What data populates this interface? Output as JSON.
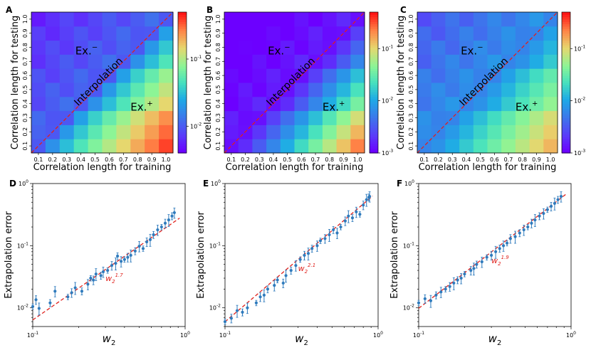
{
  "chart_data": [
    {
      "panel": "A",
      "type": "heatmap",
      "xlabel": "Correlation length for training",
      "ylabel": "Correlation length for testing",
      "categories": [
        "0.1",
        "0.2",
        "0.3",
        "0.4",
        "0.5",
        "0.6",
        "0.7",
        "0.8",
        "0.9",
        "1.0"
      ],
      "colorbar": {
        "scale": "log",
        "range": [
          0.004,
          0.5
        ],
        "ticks": [
          {
            "label": "10",
            "sup": "-2",
            "value": 0.01
          },
          {
            "label": "10",
            "sup": "-1",
            "value": 0.1
          }
        ]
      },
      "annotations": {
        "ex_minus": "Ex.",
        "ex_minus_sup": "−",
        "ex_plus": "Ex.",
        "ex_plus_sup": "+",
        "diagonal": "Interpolation"
      }
    },
    {
      "panel": "B",
      "type": "heatmap",
      "xlabel": "Correlation length for training",
      "ylabel": "Correlation length for testing",
      "categories": [
        "0.1",
        "0.2",
        "0.3",
        "0.4",
        "0.5",
        "0.6",
        "0.7",
        "0.8",
        "0.9",
        "1.0"
      ],
      "colorbar": {
        "scale": "log",
        "range": [
          0.001,
          0.5
        ],
        "ticks": [
          {
            "label": "10",
            "sup": "-3",
            "value": 0.001
          },
          {
            "label": "10",
            "sup": "-2",
            "value": 0.01
          },
          {
            "label": "10",
            "sup": "-1",
            "value": 0.1
          }
        ]
      },
      "annotations": {
        "ex_minus": "Ex.",
        "ex_minus_sup": "−",
        "ex_plus": "Ex.",
        "ex_plus_sup": "+",
        "diagonal": "Interpolation"
      }
    },
    {
      "panel": "C",
      "type": "heatmap",
      "xlabel": "Correlation length for training",
      "ylabel": "Correlation length for testing",
      "categories": [
        "0.1",
        "0.2",
        "0.3",
        "0.4",
        "0.5",
        "0.6",
        "0.7",
        "0.8",
        "0.9",
        "1.0"
      ],
      "colorbar": {
        "scale": "log",
        "range": [
          0.001,
          0.5
        ],
        "ticks": [
          {
            "label": "10",
            "sup": "-3",
            "value": 0.001
          },
          {
            "label": "10",
            "sup": "-2",
            "value": 0.01
          },
          {
            "label": "10",
            "sup": "-1",
            "value": 0.1
          }
        ]
      },
      "annotations": {
        "ex_minus": "Ex.",
        "ex_minus_sup": "−",
        "ex_plus": "Ex.",
        "ex_plus_sup": "+",
        "diagonal": "Interpolation"
      }
    },
    {
      "panel": "D",
      "type": "scatter",
      "xlabel": "w",
      "xlabel_sub": "2",
      "ylabel": "Extrapolation error",
      "xscale": "log",
      "yscale": "log",
      "xlim": [
        0.1,
        1.0
      ],
      "ylim": [
        0.005,
        1.0
      ],
      "fit": {
        "label": "w",
        "sub": "2",
        "sup": "1.7",
        "exponent": 1.7,
        "prefactor": 0.32
      },
      "x": [
        0.1,
        0.105,
        0.11,
        0.13,
        0.14,
        0.17,
        0.18,
        0.19,
        0.21,
        0.23,
        0.24,
        0.25,
        0.26,
        0.28,
        0.29,
        0.31,
        0.33,
        0.35,
        0.36,
        0.38,
        0.4,
        0.42,
        0.44,
        0.47,
        0.5,
        0.53,
        0.56,
        0.59,
        0.62,
        0.66,
        0.7,
        0.74,
        0.78,
        0.82,
        0.85
      ],
      "y": [
        0.0105,
        0.0135,
        0.0098,
        0.012,
        0.0185,
        0.015,
        0.0175,
        0.021,
        0.0185,
        0.024,
        0.03,
        0.028,
        0.035,
        0.033,
        0.038,
        0.04,
        0.048,
        0.052,
        0.068,
        0.056,
        0.06,
        0.065,
        0.07,
        0.082,
        0.098,
        0.09,
        0.115,
        0.125,
        0.15,
        0.18,
        0.2,
        0.23,
        0.26,
        0.3,
        0.34
      ]
    },
    {
      "panel": "E",
      "type": "scatter",
      "xlabel": "w",
      "xlabel_sub": "2",
      "ylabel": "Extrapolation error",
      "xscale": "log",
      "yscale": "log",
      "xlim": [
        0.1,
        1.0
      ],
      "ylim": [
        0.005,
        1.0
      ],
      "fit": {
        "label": "w",
        "sub": "2",
        "sup": "2.1",
        "exponent": 2.1,
        "prefactor": 0.75
      },
      "x": [
        0.1,
        0.11,
        0.12,
        0.13,
        0.14,
        0.16,
        0.17,
        0.18,
        0.19,
        0.21,
        0.22,
        0.24,
        0.25,
        0.27,
        0.29,
        0.31,
        0.33,
        0.35,
        0.37,
        0.4,
        0.42,
        0.45,
        0.48,
        0.51,
        0.54,
        0.57,
        0.61,
        0.64,
        0.68,
        0.72,
        0.76,
        0.8,
        0.84,
        0.87,
        0.88
      ],
      "y": [
        0.006,
        0.0068,
        0.009,
        0.0085,
        0.01,
        0.012,
        0.015,
        0.016,
        0.02,
        0.023,
        0.028,
        0.025,
        0.033,
        0.04,
        0.048,
        0.06,
        0.07,
        0.075,
        0.09,
        0.1,
        0.12,
        0.13,
        0.15,
        0.18,
        0.16,
        0.2,
        0.25,
        0.3,
        0.28,
        0.35,
        0.32,
        0.45,
        0.55,
        0.6,
        0.62
      ]
    },
    {
      "panel": "F",
      "type": "scatter",
      "xlabel": "w",
      "xlabel_sub": "2",
      "ylabel": "Extrapolation error",
      "xscale": "log",
      "yscale": "log",
      "xlim": [
        0.1,
        1.0
      ],
      "ylim": [
        0.005,
        1.0
      ],
      "fit": {
        "label": "w",
        "sub": "2",
        "sup": "1.9",
        "exponent": 1.9,
        "prefactor": 0.78
      },
      "x": [
        0.1,
        0.11,
        0.12,
        0.13,
        0.14,
        0.15,
        0.16,
        0.17,
        0.18,
        0.19,
        0.2,
        0.22,
        0.23,
        0.24,
        0.26,
        0.28,
        0.3,
        0.32,
        0.34,
        0.36,
        0.38,
        0.4,
        0.43,
        0.46,
        0.49,
        0.52,
        0.55,
        0.58,
        0.62,
        0.66,
        0.7,
        0.74,
        0.78,
        0.82,
        0.86
      ],
      "y": [
        0.012,
        0.014,
        0.013,
        0.016,
        0.018,
        0.02,
        0.022,
        0.025,
        0.028,
        0.03,
        0.035,
        0.04,
        0.043,
        0.05,
        0.055,
        0.065,
        0.07,
        0.08,
        0.09,
        0.1,
        0.11,
        0.13,
        0.14,
        0.16,
        0.18,
        0.2,
        0.23,
        0.26,
        0.3,
        0.33,
        0.38,
        0.43,
        0.48,
        0.55,
        0.62
      ]
    }
  ]
}
